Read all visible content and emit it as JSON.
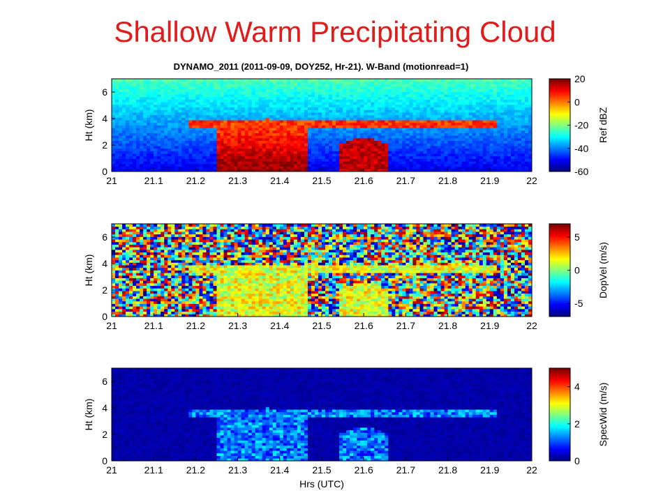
{
  "slide": {
    "title": "Shallow Warm Precipitating Cloud"
  },
  "figure": {
    "title": "DYNAMO_2011 (2011-09-09, DOY252, Hr-21).  W-Band (motionread=1)"
  },
  "chart_data": [
    {
      "type": "heatmap",
      "field": "reflectivity",
      "xlabel": "",
      "ylabel": "Ht (km)",
      "xlim": [
        21,
        22
      ],
      "ylim": [
        0,
        7
      ],
      "xticks": [
        "21",
        "21.1",
        "21.2",
        "21.3",
        "21.4",
        "21.5",
        "21.6",
        "21.7",
        "21.8",
        "21.9",
        "22"
      ],
      "yticks": [
        "0",
        "2",
        "4",
        "6"
      ],
      "colorbar": {
        "label": "Ref dBZ",
        "range": [
          -60,
          20
        ],
        "ticks": [
          "20",
          "0",
          "-20",
          "-40",
          "-60"
        ]
      },
      "features": [
        {
          "time_start": 21.25,
          "time_end": 21.47,
          "top_km": 4.0,
          "max_dBZ": 20
        },
        {
          "time_start": 21.54,
          "time_end": 21.66,
          "top_km": 2.6,
          "max_dBZ": 10
        },
        {
          "layer": "anvil",
          "time_start": 21.18,
          "time_end": 21.92,
          "alt_km": 3.6
        }
      ]
    },
    {
      "type": "heatmap",
      "field": "doppler_velocity",
      "xlabel": "",
      "ylabel": "Ht (km)",
      "xlim": [
        21,
        22
      ],
      "ylim": [
        0,
        7
      ],
      "xticks": [
        "21",
        "21.1",
        "21.2",
        "21.3",
        "21.4",
        "21.5",
        "21.6",
        "21.7",
        "21.8",
        "21.9",
        "22"
      ],
      "yticks": [
        "0",
        "2",
        "4",
        "6"
      ],
      "colorbar": {
        "label": "DopVel (m/s)",
        "range": [
          -7,
          7
        ],
        "ticks": [
          "5",
          "0",
          "-5"
        ]
      }
    },
    {
      "type": "heatmap",
      "field": "spectral_width",
      "xlabel": "Hrs (UTC)",
      "ylabel": "Ht (km)",
      "xlim": [
        21,
        22
      ],
      "ylim": [
        0,
        7
      ],
      "xticks": [
        "21",
        "21.1",
        "21.2",
        "21.3",
        "21.4",
        "21.5",
        "21.6",
        "21.7",
        "21.8",
        "21.9",
        "22"
      ],
      "yticks": [
        "0",
        "2",
        "4",
        "6"
      ],
      "colorbar": {
        "label": "SpecWid (m/s)",
        "range": [
          0,
          5
        ],
        "ticks": [
          "4",
          "2",
          "0"
        ]
      }
    }
  ]
}
